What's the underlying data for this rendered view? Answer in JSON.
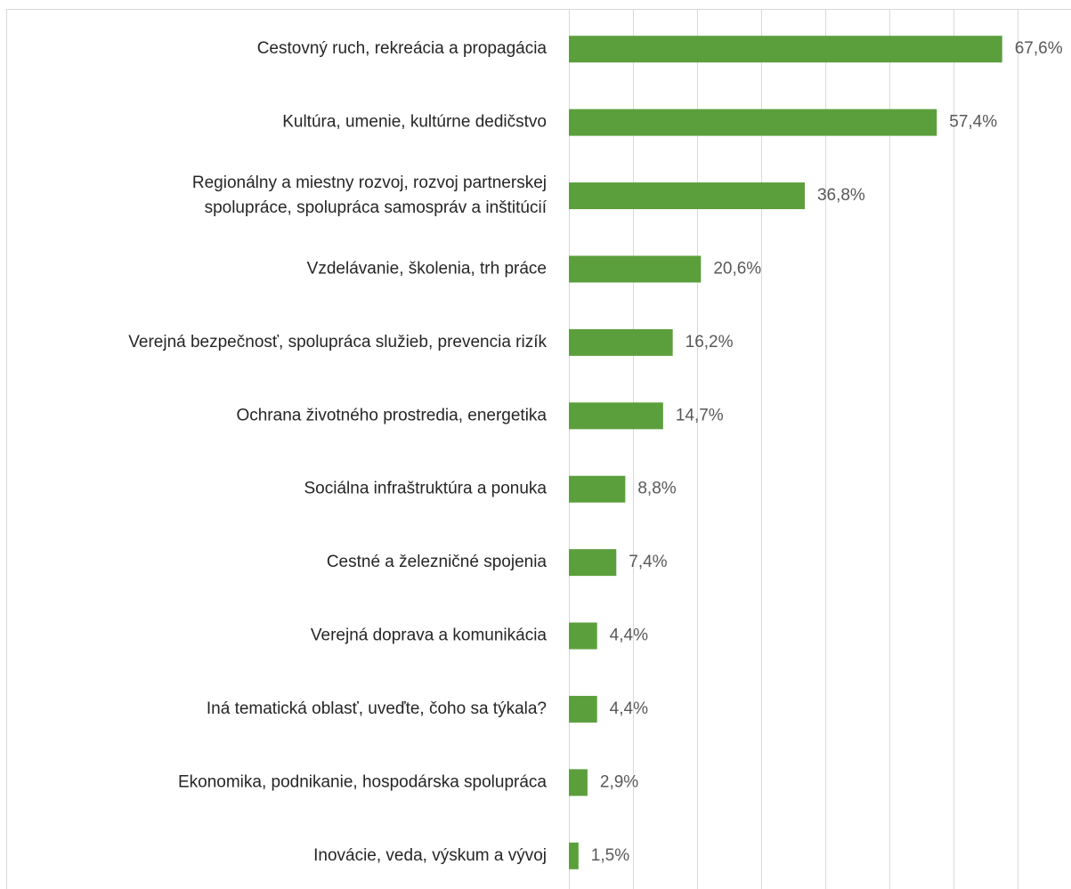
{
  "chart_data": {
    "type": "barh",
    "categories": [
      "Cestovný ruch, rekreácia a propagácia",
      "Kultúra, umenie, kultúrne dedičstvo",
      "Regionálny a miestny rozvoj, rozvoj partnerskej\nspolupráce, spolupráca samospráv a inštitúcií",
      "Vzdelávanie, školenia, trh práce",
      "Verejná bezpečnosť, spolupráca služieb, prevencia rizík",
      "Ochrana životného prostredia, energetika",
      "Sociálna infraštruktúra a ponuka",
      "Cestné a železničné spojenia",
      "Verejná doprava a komunikácia",
      "Iná tematická oblasť, uveďte, čoho sa týkala?",
      "Ekonomika, podnikanie, hospodárska spolupráca",
      "Inovácie, veda, výskum a vývoj"
    ],
    "values": [
      67.6,
      57.4,
      36.8,
      20.6,
      16.2,
      14.7,
      8.8,
      7.4,
      4.4,
      4.4,
      2.9,
      1.5
    ],
    "value_labels": [
      "67,6%",
      "57,4%",
      "36,8%",
      "20,6%",
      "16,2%",
      "14,7%",
      "8,8%",
      "7,4%",
      "4,4%",
      "4,4%",
      "2,9%",
      "1,5%"
    ],
    "color": "#5b9f3c",
    "xlim": [
      0,
      78
    ],
    "xticks": [
      0,
      10,
      20,
      30,
      40,
      50,
      60,
      70
    ],
    "grid": true
  }
}
